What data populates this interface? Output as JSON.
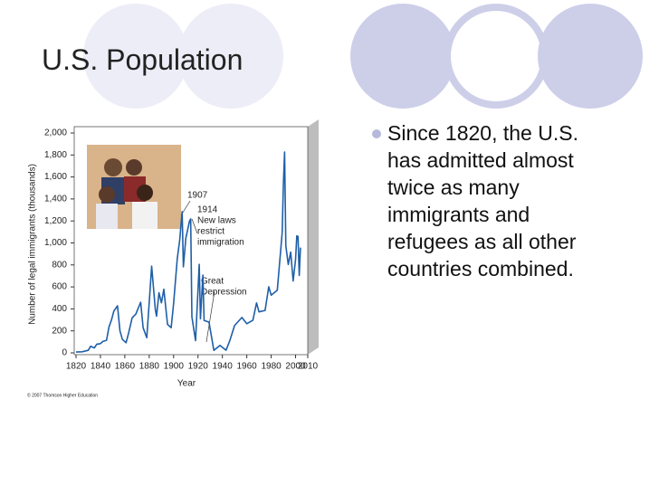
{
  "slide": {
    "title": "U.S. Population",
    "bullet": "Since 1820, the U.S. has admitted almost twice as many immigrants and refugees as all other countries combined."
  },
  "chart_data": {
    "type": "line",
    "x_label": "Year",
    "y_label": "Number of legal immigrants (thousands)",
    "credit": "© 2007 Thomson Higher Education",
    "annotations": [
      {
        "lines": [
          "1907"
        ]
      },
      {
        "lines": [
          "1914",
          "New laws",
          "restrict",
          "immigration"
        ]
      },
      {
        "lines": [
          "Great",
          "Depression"
        ]
      }
    ],
    "xlim": [
      1820,
      2010
    ],
    "xticks": [
      1820,
      1840,
      1860,
      1880,
      1900,
      1920,
      1940,
      1960,
      1980,
      2000,
      2010
    ],
    "ylim": [
      0,
      2000
    ],
    "yticks": [
      0,
      {
        "value": 200,
        "label": "200"
      },
      400,
      600,
      800,
      {
        "value": 1000,
        "label": "1,000"
      },
      {
        "value": 1200,
        "label": "1,200"
      },
      {
        "value": 1400,
        "label": "1,400"
      },
      {
        "value": 1600,
        "label": "1,600"
      },
      {
        "value": 1800,
        "label": "1,800"
      },
      {
        "value": 2000,
        "label": "2,000"
      }
    ],
    "x": [
      1820,
      1825,
      1830,
      1832,
      1835,
      1837,
      1840,
      1842,
      1845,
      1847,
      1849,
      1851,
      1854,
      1856,
      1858,
      1861,
      1863,
      1866,
      1869,
      1873,
      1875,
      1878,
      1880,
      1882,
      1885,
      1886,
      1888,
      1890,
      1892,
      1895,
      1898,
      1900,
      1903,
      1905,
      1907,
      1908,
      1910,
      1913,
      1914,
      1915,
      1918,
      1921,
      1922,
      1924,
      1925,
      1929,
      1933,
      1938,
      1943,
      1946,
      1950,
      1956,
      1960,
      1965,
      1968,
      1970,
      1975,
      1978,
      1980,
      1985,
      1989,
      1990,
      1991,
      1992,
      1994,
      1996,
      1998,
      2000,
      2001,
      2002,
      2003,
      2004
    ],
    "series": [
      {
        "color": "#1f5fa8",
        "values": [
          8,
          10,
          23,
          60,
          45,
          79,
          84,
          104,
          114,
          235,
          297,
          380,
          428,
          200,
          123,
          92,
          176,
          318,
          352,
          460,
          228,
          138,
          457,
          789,
          395,
          334,
          547,
          455,
          579,
          259,
          229,
          449,
          857,
          1026,
          1285,
          783,
          1042,
          1198,
          1218,
          327,
          111,
          805,
          310,
          707,
          294,
          280,
          23,
          68,
          24,
          109,
          249,
          322,
          265,
          297,
          454,
          373,
          386,
          601,
          525,
          570,
          1091,
          1536,
          1827,
          974,
          804,
          916,
          654,
          850,
          1064,
          1059,
          704,
          958
        ]
      }
    ]
  }
}
